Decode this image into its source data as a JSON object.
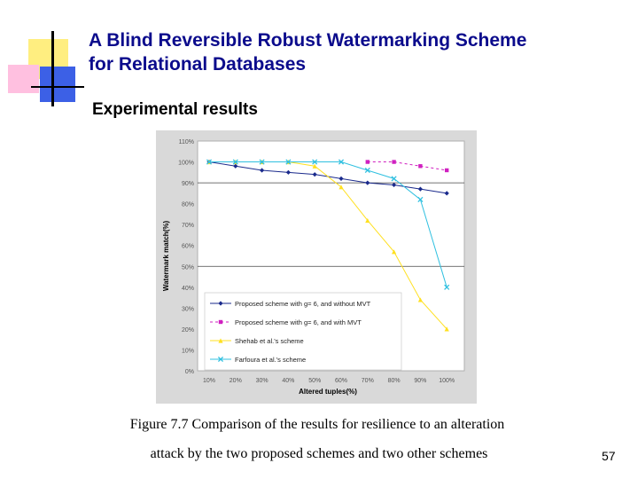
{
  "slide": {
    "title_line1": "A Blind Reversible Robust Watermarking Scheme",
    "title_line2": "for Relational Databases",
    "subtitle": "Experimental results",
    "caption_line1": "Figure 7.7 Comparison of the results for resilience to an alteration",
    "caption_line2": "attack by the two proposed schemes and two other schemes",
    "page_number": "57"
  },
  "colors": {
    "title": "#0b0b8c",
    "yellow_square": "#ffee80",
    "pink_square": "#ffc0e0",
    "blue_square": "#3c60e6"
  },
  "chart_data": {
    "type": "line",
    "xlabel": "Altered tuples(%)",
    "ylabel": "Watermark match(%)",
    "x": [
      "10%",
      "20%",
      "30%",
      "40%",
      "50%",
      "60%",
      "70%",
      "80%",
      "90%",
      "100%"
    ],
    "yticks": [
      "0%",
      "10%",
      "20%",
      "30%",
      "40%",
      "50%",
      "60%",
      "70%",
      "80%",
      "90%",
      "100%",
      "110%"
    ],
    "ylim": [
      0,
      110
    ],
    "series": [
      {
        "name": "Proposed scheme with g= 6, and without MVT",
        "color": "#1a2a8c",
        "marker": "diamond",
        "values": [
          100,
          98,
          96,
          95,
          94,
          92,
          90,
          89,
          87,
          85
        ]
      },
      {
        "name": "Proposed scheme with g= 6, and with MVT",
        "color": "#d020c0",
        "marker": "square",
        "values": [
          null,
          null,
          null,
          null,
          null,
          null,
          100,
          100,
          98,
          96
        ]
      },
      {
        "name": "Shehab et al.'s scheme",
        "color": "#ffe020",
        "marker": "triangle",
        "values": [
          100,
          100,
          100,
          100,
          98,
          88,
          72,
          57,
          34,
          20
        ]
      },
      {
        "name": "Farfoura et al.'s scheme",
        "color": "#30c0e0",
        "marker": "x",
        "values": [
          100,
          100,
          100,
          100,
          100,
          100,
          96,
          92,
          82,
          40
        ]
      }
    ],
    "gridlines": [
      50,
      90
    ]
  }
}
